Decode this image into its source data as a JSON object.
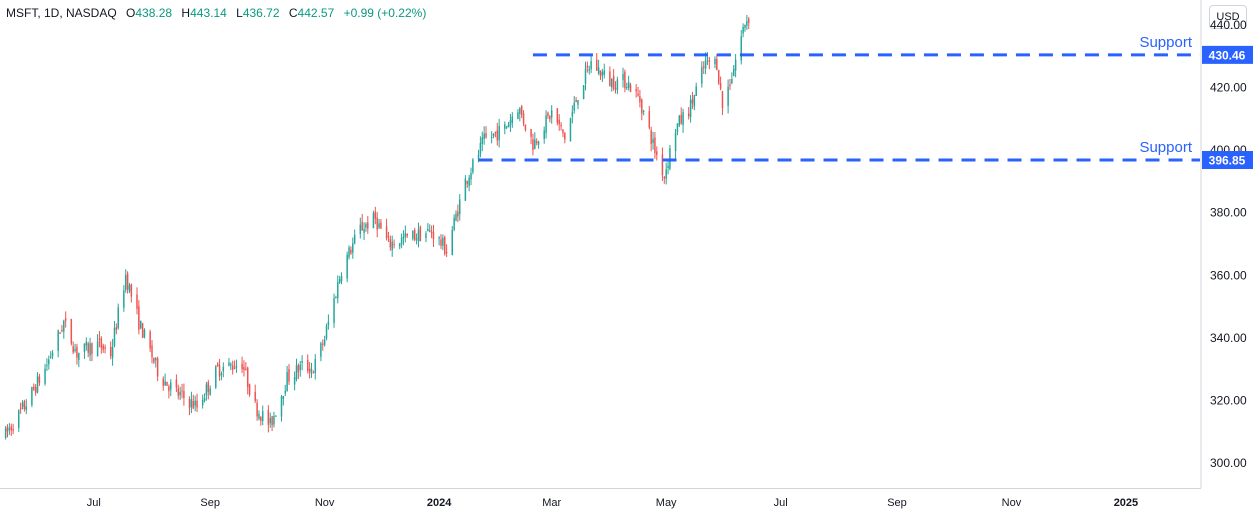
{
  "header": {
    "symbol": "MSFT, 1D, NASDAQ",
    "o_label": "O",
    "o_value": "438.28",
    "h_label": "H",
    "h_value": "443.14",
    "l_label": "L",
    "l_value": "436.72",
    "c_label": "C",
    "c_value": "442.57",
    "change": "+0.99 (+0.22%)"
  },
  "currency_button": "USD",
  "colors": {
    "up": "#26a69a",
    "down": "#ef5350",
    "support_line": "#2962ff",
    "header_value": "#089981"
  },
  "chart_data": {
    "type": "candlestick",
    "title": "",
    "xlabel": "",
    "ylabel": "",
    "ylim": [
      292,
      448
    ],
    "y_ticks": [
      "300.00",
      "320.00",
      "340.00",
      "360.00",
      "380.00",
      "400.00",
      "420.00",
      "440.00"
    ],
    "x_ticks": [
      {
        "label": "Jul",
        "date": "2023-07-01"
      },
      {
        "label": "Sep",
        "date": "2023-09-01"
      },
      {
        "label": "Nov",
        "date": "2023-11-01"
      },
      {
        "label": "2024",
        "date": "2024-01-01",
        "bold": true
      },
      {
        "label": "Mar",
        "date": "2024-03-01"
      },
      {
        "label": "May",
        "date": "2024-05-01"
      },
      {
        "label": "Jul",
        "date": "2024-07-01"
      },
      {
        "label": "Sep",
        "date": "2024-09-01"
      },
      {
        "label": "Nov",
        "date": "2024-11-01"
      },
      {
        "label": "2025",
        "date": "2025-01-01",
        "bold": true
      }
    ],
    "x_range": [
      "2023-05-12",
      "2025-02-10"
    ],
    "price_path": [
      [
        "2023-05-15",
        309
      ],
      [
        "2023-05-25",
        318
      ],
      [
        "2023-06-05",
        330
      ],
      [
        "2023-06-15",
        345
      ],
      [
        "2023-06-22",
        335
      ],
      [
        "2023-07-03",
        338
      ],
      [
        "2023-07-10",
        335
      ],
      [
        "2023-07-18",
        360
      ],
      [
        "2023-07-25",
        345
      ],
      [
        "2023-08-05",
        328
      ],
      [
        "2023-08-15",
        322
      ],
      [
        "2023-08-25",
        318
      ],
      [
        "2023-09-05",
        330
      ],
      [
        "2023-09-18",
        332
      ],
      [
        "2023-09-25",
        318
      ],
      [
        "2023-10-03",
        312
      ],
      [
        "2023-10-12",
        327
      ],
      [
        "2023-10-20",
        331
      ],
      [
        "2023-10-26",
        330
      ],
      [
        "2023-11-01",
        340
      ],
      [
        "2023-11-10",
        362
      ],
      [
        "2023-11-20",
        375
      ],
      [
        "2023-11-28",
        378
      ],
      [
        "2023-12-05",
        370
      ],
      [
        "2023-12-15",
        372
      ],
      [
        "2023-12-28",
        374
      ],
      [
        "2024-01-05",
        368
      ],
      [
        "2024-01-15",
        390
      ],
      [
        "2024-01-25",
        403
      ],
      [
        "2024-02-05",
        407
      ],
      [
        "2024-02-12",
        414
      ],
      [
        "2024-02-20",
        402
      ],
      [
        "2024-03-01",
        412
      ],
      [
        "2024-03-08",
        404
      ],
      [
        "2024-03-15",
        418
      ],
      [
        "2024-03-22",
        428
      ],
      [
        "2024-04-01",
        422
      ],
      [
        "2024-04-10",
        422
      ],
      [
        "2024-04-17",
        416
      ],
      [
        "2024-04-25",
        400
      ],
      [
        "2024-04-30",
        392
      ],
      [
        "2024-05-06",
        407
      ],
      [
        "2024-05-14",
        414
      ],
      [
        "2024-05-22",
        428
      ],
      [
        "2024-05-28",
        428
      ],
      [
        "2024-05-31",
        414
      ],
      [
        "2024-06-05",
        424
      ],
      [
        "2024-06-12",
        441
      ],
      [
        "2024-06-14",
        442.57
      ]
    ],
    "support_lines": [
      {
        "label": "Support",
        "value": 430.46,
        "price_label": "430.46",
        "start": "2024-02-20"
      },
      {
        "label": "Support",
        "value": 396.85,
        "price_label": "396.85",
        "start": "2024-01-22"
      }
    ]
  }
}
